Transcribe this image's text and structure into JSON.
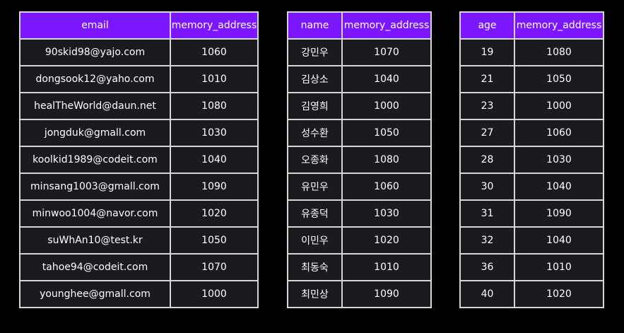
{
  "tables": [
    {
      "headers": [
        "email",
        "memory_address"
      ],
      "rows": [
        [
          "90skid98@yajo.com",
          "1060"
        ],
        [
          "dongsook12@yaho.com",
          "1010"
        ],
        [
          "healTheWorld@daun.net",
          "1080"
        ],
        [
          "jongduk@gmall.com",
          "1030"
        ],
        [
          "koolkid1989@codeit.com",
          "1040"
        ],
        [
          "minsang1003@gmall.com",
          "1090"
        ],
        [
          "minwoo1004@navor.com",
          "1020"
        ],
        [
          "suWhAn10@test.kr",
          "1050"
        ],
        [
          "tahoe94@codeit.com",
          "1070"
        ],
        [
          "younghee@gmall.com",
          "1000"
        ]
      ]
    },
    {
      "headers": [
        "name",
        "memory_address"
      ],
      "rows": [
        [
          "강민우",
          "1070"
        ],
        [
          "김상소",
          "1040"
        ],
        [
          "김영희",
          "1000"
        ],
        [
          "성수환",
          "1050"
        ],
        [
          "오종화",
          "1080"
        ],
        [
          "유민우",
          "1060"
        ],
        [
          "유종덕",
          "1030"
        ],
        [
          "이민우",
          "1020"
        ],
        [
          "최동숙",
          "1010"
        ],
        [
          "최민상",
          "1090"
        ]
      ]
    },
    {
      "headers": [
        "age",
        "memory_address"
      ],
      "rows": [
        [
          "19",
          "1080"
        ],
        [
          "21",
          "1050"
        ],
        [
          "23",
          "1000"
        ],
        [
          "27",
          "1060"
        ],
        [
          "28",
          "1030"
        ],
        [
          "30",
          "1040"
        ],
        [
          "31",
          "1090"
        ],
        [
          "32",
          "1040"
        ],
        [
          "36",
          "1010"
        ],
        [
          "40",
          "1020"
        ]
      ]
    }
  ],
  "colors": {
    "header_background": "#7b16ff",
    "cell_background": "#1b1b1f",
    "border": "#d6d6d6",
    "page_background": "#000000"
  }
}
